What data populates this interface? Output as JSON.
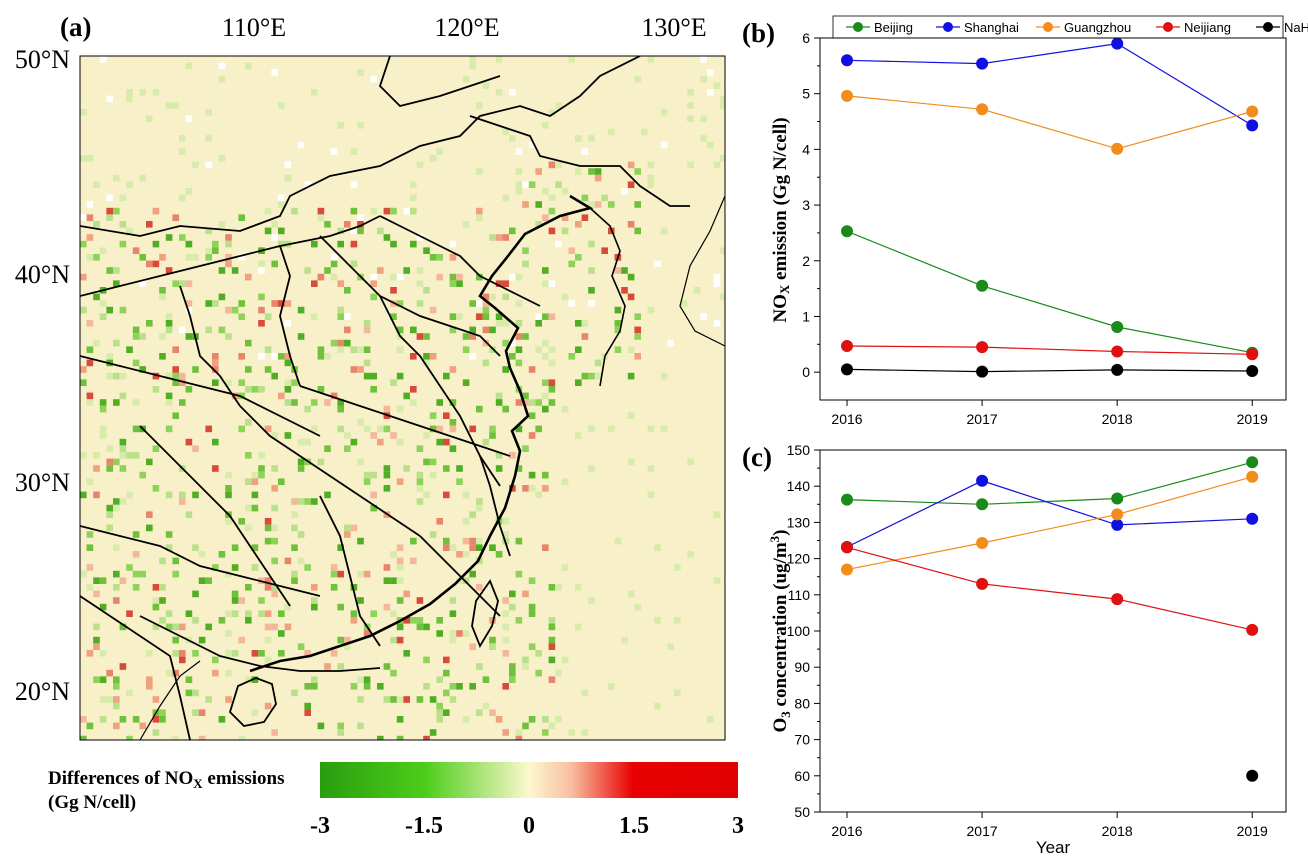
{
  "map_panel": {
    "label": "(a)",
    "lon_labels": [
      "110°E",
      "120°E",
      "130°E"
    ],
    "lat_labels": [
      "50°N",
      "40°N",
      "30°N",
      "20°N"
    ],
    "legend_title": "Differences of NO",
    "legend_title_sub": "X",
    "legend_title_suffix": " emissions",
    "legend_unit": "(Gg N/cell)",
    "colorbar_ticks": [
      "-3",
      "-1.5",
      "0",
      "1.5",
      "3"
    ],
    "colorbar_range": [
      -3,
      3
    ],
    "colors": {
      "negative": "#2a9d0f",
      "mid_negative": "#55d21c",
      "zero": "#fdf7cf",
      "mid_positive": "#f9b59b",
      "positive": "#e80000",
      "background": "#f6efc6"
    }
  },
  "chart_data": [
    {
      "panel": "(b)",
      "type": "line",
      "x": [
        2016,
        2017,
        2018,
        2019
      ],
      "xticks": [
        "2016",
        "2017",
        "2018",
        "2019"
      ],
      "ylabel": "NOx emission (Gg N/cell)",
      "ylabel_parts": [
        "NO",
        "X",
        " emission (Gg N/cell)"
      ],
      "ylim": [
        -0.5,
        6
      ],
      "yticks": [
        "0",
        "1",
        "2",
        "3",
        "4",
        "5",
        "6"
      ],
      "legend_position": "top",
      "series": [
        {
          "name": "Beijing",
          "color": "#1a8a1a",
          "values": [
            2.53,
            1.55,
            0.81,
            0.35
          ]
        },
        {
          "name": "Shanghai",
          "color": "#1010e0",
          "values": [
            5.6,
            5.54,
            5.9,
            4.43
          ]
        },
        {
          "name": "Guangzhou",
          "color": "#f28c1a",
          "values": [
            4.96,
            4.72,
            4.01,
            4.68
          ]
        },
        {
          "name": "Neijiang",
          "color": "#e01010",
          "values": [
            0.47,
            0.45,
            0.37,
            0.32
          ]
        },
        {
          "name": "NaHa",
          "color": "#000000",
          "values": [
            0.05,
            0.01,
            0.04,
            0.02
          ]
        }
      ]
    },
    {
      "panel": "(c)",
      "type": "line",
      "x": [
        2016,
        2017,
        2018,
        2019
      ],
      "xticks": [
        "2016",
        "2017",
        "2018",
        "2019"
      ],
      "xlabel": "Year",
      "ylabel_parts": [
        "O",
        "3",
        " concentration (ug/m",
        "3",
        ")"
      ],
      "ylim": [
        50,
        150
      ],
      "yticks": [
        "50",
        "60",
        "70",
        "80",
        "90",
        "100",
        "110",
        "120",
        "130",
        "140",
        "150"
      ],
      "series": [
        {
          "name": "Beijing",
          "color": "#1a8a1a",
          "values": [
            136.3,
            135.0,
            136.6,
            146.6
          ]
        },
        {
          "name": "Shanghai",
          "color": "#1010e0",
          "values": [
            123.2,
            141.5,
            129.3,
            131.0
          ]
        },
        {
          "name": "Guangzhou",
          "color": "#f28c1a",
          "values": [
            117.0,
            124.3,
            132.2,
            142.6
          ]
        },
        {
          "name": "Neijiang",
          "color": "#e01010",
          "values": [
            123.1,
            113.0,
            108.8,
            100.3
          ]
        },
        {
          "name": "NaHa",
          "color": "#000000",
          "values": [
            null,
            null,
            null,
            60.0
          ]
        }
      ]
    }
  ]
}
